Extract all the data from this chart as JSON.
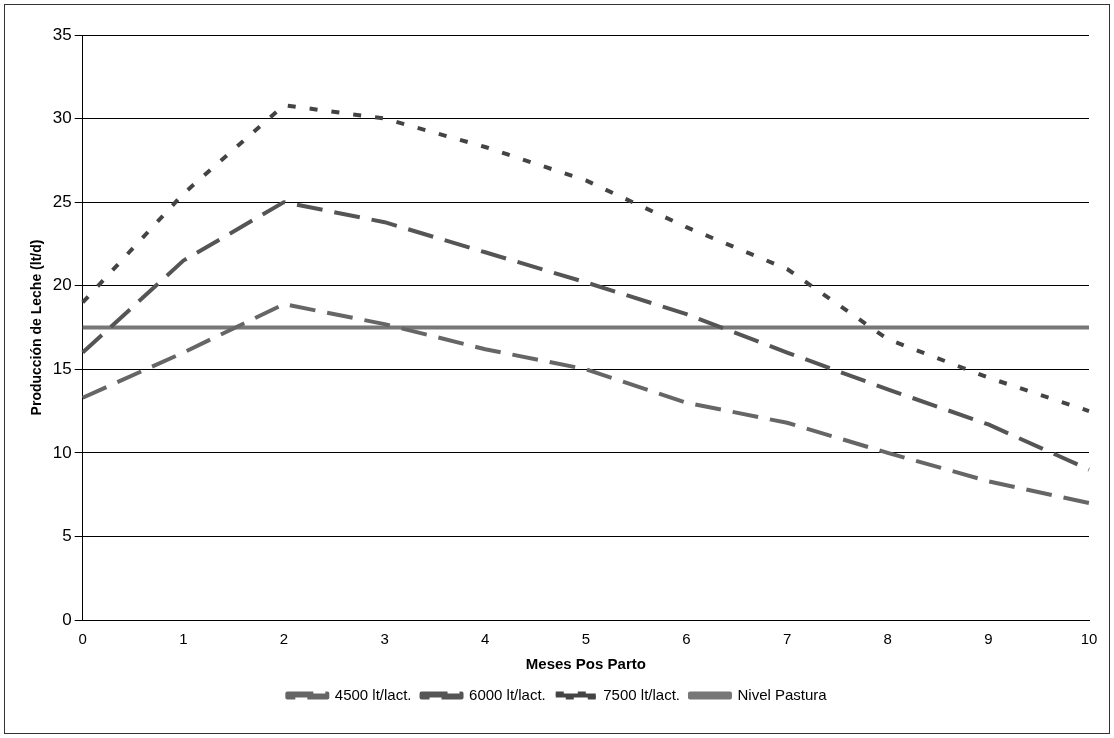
{
  "chart_data": {
    "type": "line",
    "xlabel": "Meses Pos Parto",
    "ylabel": "Producción de Leche (lt/d)",
    "categories": [
      "0",
      "1",
      "2",
      "3",
      "4",
      "5",
      "6",
      "7",
      "8",
      "9",
      "10"
    ],
    "series": [
      {
        "name": "4500 lt/lact.",
        "color": "#666666",
        "line_style": "dashed",
        "values": [
          13.3,
          16,
          18.9,
          17.7,
          16.2,
          15,
          13,
          11.8,
          10,
          8.3,
          7
        ]
      },
      {
        "name": "6000 lt/lact.",
        "color": "#555555",
        "line_style": "dashed",
        "values": [
          16,
          21.5,
          25,
          23.8,
          22,
          20.2,
          18.3,
          16,
          13.8,
          11.7,
          9
        ]
      },
      {
        "name": "7500 lt/lact.",
        "color": "#444444",
        "line_style": "dotted",
        "values": [
          19,
          25.5,
          30.8,
          30,
          28.3,
          26.3,
          23.5,
          21,
          16.8,
          14.5,
          12.5
        ]
      },
      {
        "name": "Nivel Pastura",
        "color": "#777777",
        "line_style": "solid",
        "values": [
          17.5,
          17.5,
          17.5,
          17.5,
          17.5,
          17.5,
          17.5,
          17.5,
          17.5,
          17.5,
          17.5
        ]
      }
    ],
    "ylim": [
      0,
      35
    ],
    "yticks": [
      0,
      5,
      10,
      15,
      20,
      25,
      30,
      35
    ],
    "grid": "y",
    "legend": "bottom",
    "marker": "none"
  }
}
